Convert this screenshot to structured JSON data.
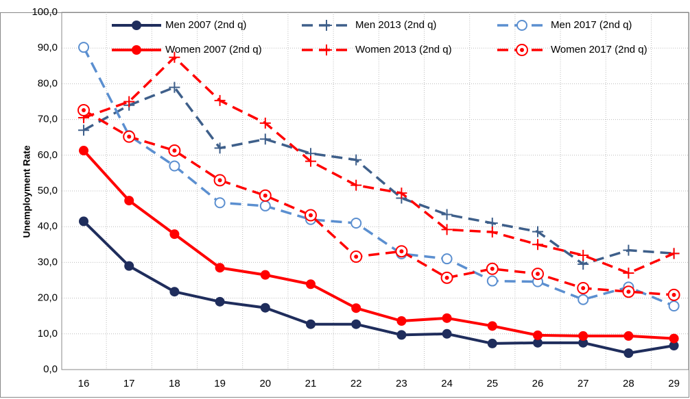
{
  "chart_data": {
    "type": "line",
    "y_label": "Unemployment Rate",
    "categories": [
      "16",
      "17",
      "18",
      "19",
      "20",
      "21",
      "22",
      "23",
      "24",
      "25",
      "26",
      "27",
      "28",
      "29"
    ],
    "series": [
      {
        "name": "Men 2007 (2nd q)",
        "color": "#1f2d5c",
        "marker": "circle",
        "dashed": false,
        "values": [
          41.5,
          29,
          21.8,
          19,
          17.3,
          12.7,
          12.7,
          9.7,
          10,
          7.3,
          7.5,
          7.5,
          4.6,
          6.7
        ]
      },
      {
        "name": "Men 2013 (2nd q)",
        "color": "#3e5f8a",
        "marker": "plus",
        "dashed": true,
        "values": [
          67,
          74,
          79,
          62,
          64.5,
          60.5,
          58.7,
          48,
          43.4,
          41,
          38.6,
          29.5,
          33.4,
          32.5
        ]
      },
      {
        "name": "Men 2017 (2nd q)",
        "color": "#5b8fd0",
        "marker": "open-circle",
        "dashed": true,
        "values": [
          90.2,
          65.5,
          57,
          46.7,
          45.8,
          42,
          41,
          32.4,
          31,
          24.8,
          24.6,
          19.6,
          23.1,
          17.8
        ]
      },
      {
        "name": "Women 2007 (2nd q)",
        "color": "#ff0000",
        "marker": "circle",
        "dashed": false,
        "values": [
          61.3,
          47.3,
          37.9,
          28.5,
          26.5,
          23.9,
          17.2,
          13.6,
          14.4,
          12.2,
          9.6,
          9.4,
          9.4,
          8.7
        ]
      },
      {
        "name": "Women 2013 (2nd q)",
        "color": "#ff0000",
        "marker": "plus",
        "dashed": true,
        "values": [
          70.5,
          75,
          87.4,
          75.3,
          69,
          58.3,
          51.6,
          49.4,
          39.2,
          38.5,
          35,
          32,
          27,
          32.5
        ]
      },
      {
        "name": "Women 2017 (2nd q)",
        "color": "#ff0000",
        "marker": "dot-circle",
        "dashed": true,
        "values": [
          72.6,
          65.2,
          61.3,
          53,
          48.7,
          43.2,
          31.6,
          33.1,
          25.7,
          28.2,
          26.8,
          22.8,
          21.8,
          20.9
        ]
      }
    ],
    "ylim": [
      0,
      100
    ],
    "yticks": [
      {
        "value": 0,
        "label": "0,0"
      },
      {
        "value": 10,
        "label": "10,0"
      },
      {
        "value": 20,
        "label": "20,0"
      },
      {
        "value": 30,
        "label": "30,0"
      },
      {
        "value": 40,
        "label": "40,0"
      },
      {
        "value": 50,
        "label": "50,0"
      },
      {
        "value": 60,
        "label": "60,0"
      },
      {
        "value": 70,
        "label": "70,0"
      },
      {
        "value": 80,
        "label": "80,0"
      },
      {
        "value": 90,
        "label": "90,0"
      },
      {
        "value": 100,
        "label": "100,0"
      }
    ],
    "grid": true,
    "legend": "top"
  }
}
